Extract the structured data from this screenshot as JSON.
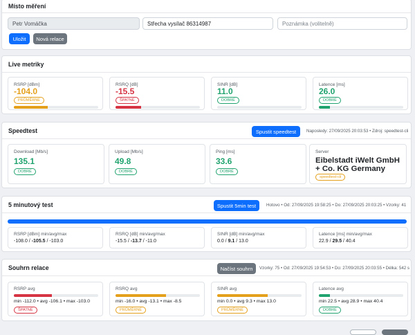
{
  "location": {
    "title": "Místo měření",
    "name_value": "Petr Vomáčka",
    "site_value": "Střecha vysílač 86314987",
    "note_placeholder": "Poznámka (volitelně)",
    "save_label": "Uložit",
    "new_session_label": "Nová relace"
  },
  "live": {
    "title": "Live metriky",
    "tiles": [
      {
        "label": "RSRP [dBm]",
        "value": "-104.0",
        "badge": "PRŮMĚRNÉ",
        "level": 0.4,
        "status": "mid"
      },
      {
        "label": "RSRQ [dB]",
        "value": "-15.5",
        "badge": "ŠPATNÉ",
        "level": 0.3,
        "status": "bad"
      },
      {
        "label": "SINR [dB]",
        "value": "11.0",
        "badge": "DOBRÉ",
        "level": 0.0,
        "status": "good"
      },
      {
        "label": "Latence [ms]",
        "value": "26.0",
        "badge": "DOBRÉ",
        "level": 0.13,
        "status": "good"
      }
    ]
  },
  "speedtest": {
    "title": "Speedtest",
    "run_label": "Spustit speedtest",
    "meta": "Naposledy: 27/09/2025 20:03:53 • Zdroj: speedtest-cli",
    "tiles": [
      {
        "label": "Download [Mb/s]",
        "value": "135.1",
        "badge": "DOBRÉ"
      },
      {
        "label": "Upload [Mb/s]",
        "value": "49.8",
        "badge": "DOBRÉ"
      },
      {
        "label": "Ping [ms]",
        "value": "33.6",
        "badge": "DOBRÉ"
      }
    ],
    "server": {
      "label": "Server",
      "name_line1": "Eibelstadt iWelt GmbH",
      "name_line2": "+ Co. KG Germany",
      "badge": "speedtest-cli"
    }
  },
  "five_min": {
    "title": "5 minutový test",
    "run_label": "Spustit 5min test",
    "meta": "Hotovo • Od: 27/09/2025 19:58:25 • Do: 27/09/2025 20:03:25 • Vzorky: 41",
    "progress": 1.0,
    "tiles": [
      {
        "label": "RSRP [dBm] min/avg/max",
        "min": "-108.0",
        "avg": "-105.5",
        "max": "-103.0"
      },
      {
        "label": "RSRQ [dB] min/avg/max",
        "min": "-15.5",
        "avg": "-13.7",
        "max": "-11.0"
      },
      {
        "label": "SINR [dB] min/avg/max",
        "min": "0.0",
        "avg": "9.1",
        "max": "13.0"
      },
      {
        "label": "Latence [ms] min/avg/max",
        "min": "22.9",
        "avg": "29.5",
        "max": "40.4"
      }
    ]
  },
  "summary": {
    "title": "Souhrn relace",
    "load_label": "Načíst souhrn",
    "meta": "Vzorky: 75 • Od: 27/09/2025 19:54:53 • Do: 27/09/2025 20:03:55 • Délka: 542 s",
    "tiles": [
      {
        "label": "RSRP avg",
        "stats": "min -112.0 • avg -106.1 • max -103.0",
        "badge": "ŠPATNÉ",
        "level": 0.45,
        "status": "bad"
      },
      {
        "label": "RSRQ avg",
        "stats": "min -16.0 • avg -13.1 • max -8.5",
        "badge": "PRŮMĚRNÉ",
        "level": 0.6,
        "status": "mid"
      },
      {
        "label": "SINR avg",
        "stats": "min 0.0 • avg 9.3 • max 13.0",
        "badge": "PRŮMĚRNÉ",
        "level": 0.6,
        "status": "mid"
      },
      {
        "label": "Latence avg",
        "stats": "min 22.5 • avg 28.9 • max 40.4",
        "badge": "DOBRÉ",
        "level": 0.13,
        "status": "good"
      }
    ]
  },
  "colors": {
    "good": "#20a36e",
    "mid": "#e5a01b",
    "bad": "#d63343",
    "primary": "#0d6efd",
    "secondary": "#6c757d"
  }
}
